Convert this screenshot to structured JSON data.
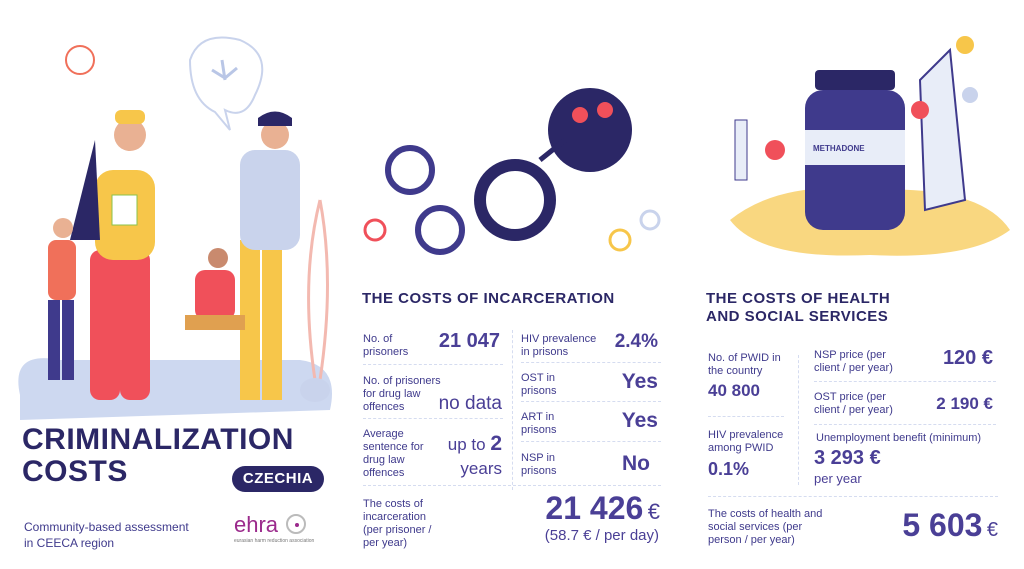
{
  "left": {
    "title_line1": "CRIMINALIZATION",
    "title_line2": "COSTS",
    "country": "CZECHIA",
    "subtitle_line1": "Community-based assessment",
    "subtitle_line2": "in CEECA region",
    "logo_text": "ehra",
    "logo_caption": "eurasian harm reduction association"
  },
  "incarceration": {
    "title": "THE COSTS OF INCARCERATION",
    "prisoners_label": "No. of prisoners",
    "prisoners_value": "21 047",
    "drug_prisoners_label": "No. of prisoners for drug law offences",
    "drug_prisoners_value": "no data",
    "sentence_label": "Average sentence for drug law offences",
    "sentence_prefix": "up to",
    "sentence_number": "2",
    "sentence_unit": "years",
    "hiv_label": "HIV prevalence in prisons",
    "hiv_value": "2.4%",
    "ost_label": "OST in prisons",
    "ost_value": "Yes",
    "art_label": "ART in prisons",
    "art_value": "Yes",
    "nsp_label": "NSP in prisons",
    "nsp_value": "No",
    "cost_label": "The costs of incarceration (per prisoner / per year)",
    "cost_value": "21 426",
    "cost_currency": "€",
    "cost_per_day": "(58.7 € / per day)"
  },
  "health": {
    "title_line1": "THE COSTS OF HEALTH",
    "title_line2": "AND SOCIAL SERVICES",
    "pwid_label": "No. of PWID in the country",
    "pwid_value": "40 800",
    "hiv_label": "HIV prevalence among PWID",
    "hiv_value": "0.1%",
    "nsp_label": "NSP price (per client / per year)",
    "nsp_value": "120 €",
    "ost_label": "OST price (per client / per year)",
    "ost_value": "2 190 €",
    "unemployment_label": "Unemployment benefit (minimum)",
    "unemployment_value": "3 293 €",
    "unemployment_unit": "per year",
    "cost_label": "The costs of health and social services (per person / per year)",
    "cost_value": "5 603",
    "cost_currency": "€",
    "bottle_label": "METHADONE"
  },
  "colors": {
    "navy": "#2b2766",
    "purple": "#4a3f96",
    "blob": "#cdd8f0",
    "accent_red": "#f0505a",
    "yellow": "#f7c64a",
    "ehra": "#9b2a8c"
  }
}
